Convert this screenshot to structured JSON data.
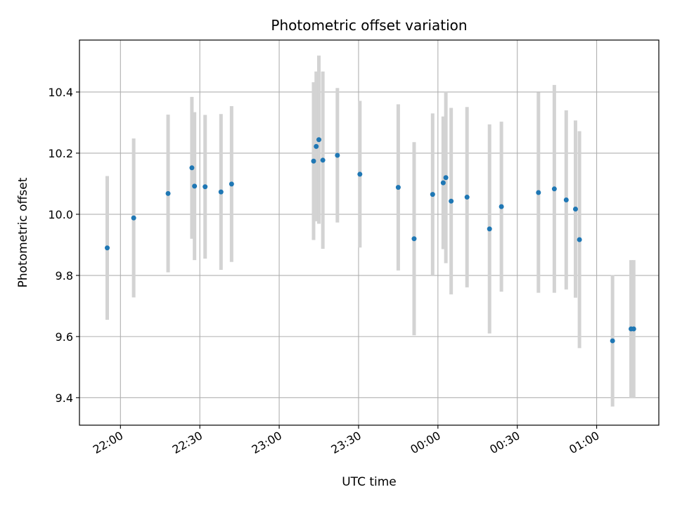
{
  "chart_data": {
    "type": "scatter",
    "title": "Photometric offset variation",
    "xlabel": "UTC time",
    "ylabel": "Photometric offset",
    "x_ticks": [
      "22:00",
      "22:30",
      "23:00",
      "23:30",
      "00:00",
      "00:30",
      "01:00"
    ],
    "y_ticks": [
      "9.4",
      "9.6",
      "9.8",
      "10.0",
      "10.2",
      "10.4"
    ],
    "xlim": [
      "21:44:30",
      "01:23:30"
    ],
    "ylim": [
      9.31,
      10.57
    ],
    "grid": true,
    "marker_color": "#1f77b4",
    "errorbar_color": "#d3d3d3",
    "points": [
      {
        "x": "21:55:00",
        "y": 9.89,
        "err": 0.235
      },
      {
        "x": "22:05:00",
        "y": 9.988,
        "err": 0.26
      },
      {
        "x": "22:18:00",
        "y": 10.068,
        "err": 0.258
      },
      {
        "x": "22:27:00",
        "y": 10.152,
        "err": 0.232
      },
      {
        "x": "22:28:00",
        "y": 10.092,
        "err": 0.242
      },
      {
        "x": "22:32:00",
        "y": 10.09,
        "err": 0.235
      },
      {
        "x": "22:38:00",
        "y": 10.073,
        "err": 0.255
      },
      {
        "x": "22:42:00",
        "y": 10.099,
        "err": 0.255
      },
      {
        "x": "23:13:00",
        "y": 10.174,
        "err": 0.258
      },
      {
        "x": "23:14:00",
        "y": 10.222,
        "err": 0.245
      },
      {
        "x": "23:15:00",
        "y": 10.244,
        "err": 0.275
      },
      {
        "x": "23:16:30",
        "y": 10.177,
        "err": 0.29
      },
      {
        "x": "23:22:00",
        "y": 10.193,
        "err": 0.22
      },
      {
        "x": "23:30:30",
        "y": 10.131,
        "err": 0.24
      },
      {
        "x": "23:45:00",
        "y": 10.088,
        "err": 0.272
      },
      {
        "x": "23:51:00",
        "y": 9.92,
        "err": 0.316
      },
      {
        "x": "23:58:00",
        "y": 10.065,
        "err": 0.265
      },
      {
        "x": "00:02:00",
        "y": 10.103,
        "err": 0.217
      },
      {
        "x": "00:03:00",
        "y": 10.12,
        "err": 0.28
      },
      {
        "x": "00:05:00",
        "y": 10.043,
        "err": 0.305
      },
      {
        "x": "00:11:00",
        "y": 10.056,
        "err": 0.295
      },
      {
        "x": "00:19:30",
        "y": 9.952,
        "err": 0.342
      },
      {
        "x": "00:24:00",
        "y": 10.025,
        "err": 0.278
      },
      {
        "x": "00:38:00",
        "y": 10.071,
        "err": 0.328
      },
      {
        "x": "00:44:00",
        "y": 10.083,
        "err": 0.34
      },
      {
        "x": "00:48:30",
        "y": 10.047,
        "err": 0.293
      },
      {
        "x": "00:52:00",
        "y": 10.017,
        "err": 0.29
      },
      {
        "x": "00:53:30",
        "y": 9.917,
        "err": 0.355
      },
      {
        "x": "01:06:00",
        "y": 9.586,
        "err": 0.215
      },
      {
        "x": "01:13:00",
        "y": 9.625,
        "err": 0.225
      },
      {
        "x": "01:14:00",
        "y": 9.625,
        "err": 0.225
      }
    ]
  }
}
